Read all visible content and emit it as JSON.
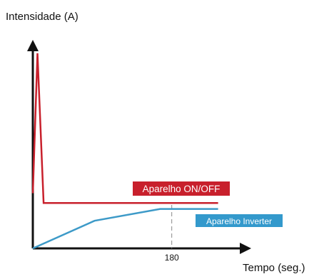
{
  "chart_data": {
    "type": "line",
    "ylabel": "Intensidade (A)",
    "xlabel": "Tempo (seg.)",
    "x_ticks": [
      180
    ],
    "marker_x": 180,
    "xlim": [
      0,
      270
    ],
    "ylim": [
      0,
      100
    ],
    "series": [
      {
        "name": "Aparelho ON/OFF",
        "color": "#c8202c",
        "label_color": "#c8202c",
        "x": [
          0,
          6,
          14,
          240
        ],
        "y": [
          28,
          99,
          23,
          23
        ]
      },
      {
        "name": "Aparelho Inverter",
        "color": "#3d9ac8",
        "label_color": "#3399cc",
        "x": [
          0,
          80,
          165,
          240
        ],
        "y": [
          0,
          14,
          20,
          20
        ]
      }
    ],
    "axis_color": "#111111",
    "grid": false
  }
}
